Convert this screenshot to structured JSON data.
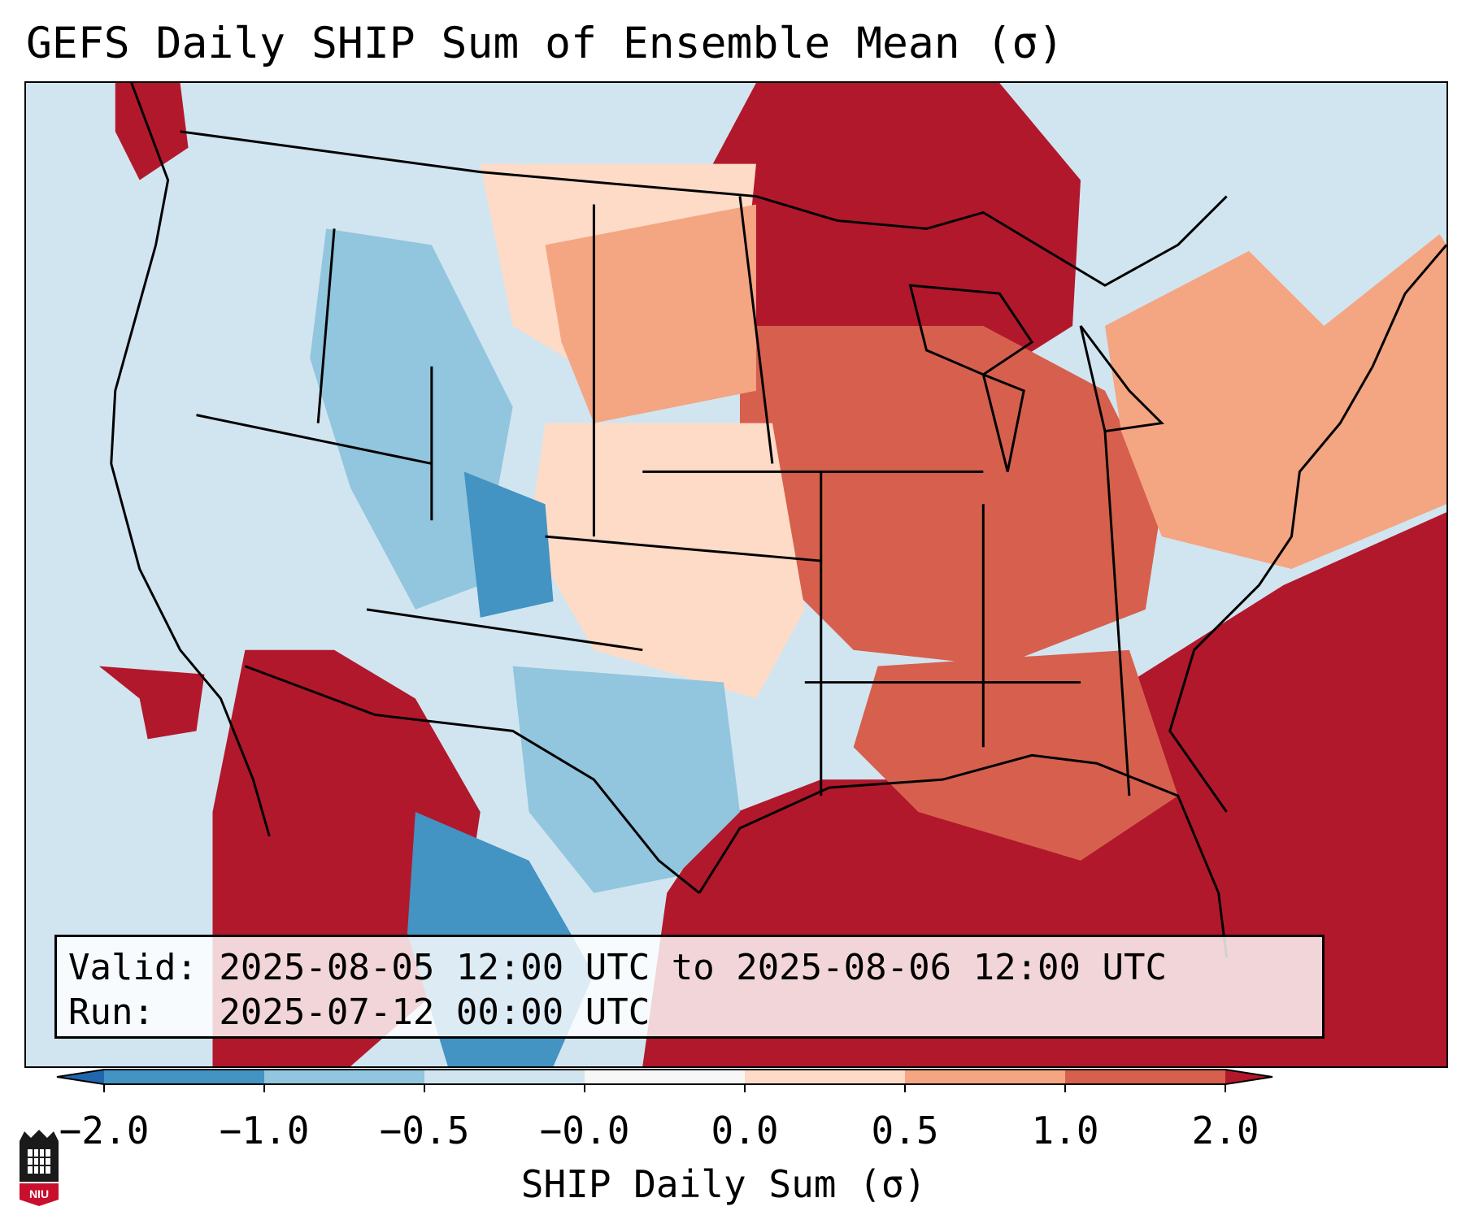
{
  "header": {
    "title": "GEFS Daily SHIP Sum of Ensemble Mean (σ)"
  },
  "info": {
    "valid_line": "Valid: 2025-08-05 12:00 UTC to 2025-08-06 12:00 UTC",
    "run_line": "Run:   2025-07-12 00:00 UTC"
  },
  "colorbar": {
    "label": "SHIP Daily Sum (σ)",
    "ticks": [
      "−2.0",
      "−1.0",
      "−0.5",
      "−0.0",
      "0.0",
      "0.5",
      "1.0",
      "2.0"
    ],
    "colors": [
      "#2166ac",
      "#4393c3",
      "#92c5de",
      "#d1e5f0",
      "#f7f7f7",
      "#fddbc7",
      "#f4a582",
      "#d6604d",
      "#b2182b"
    ],
    "extend": "both"
  },
  "map": {
    "region": "Contiguous United States",
    "colors": {
      "ocean": "#d1e5f0",
      "strong_positive": "#b2182b",
      "positive": "#d6604d",
      "weak_positive": "#f4a582",
      "slight_positive": "#fddbc7",
      "slight_negative": "#d1e5f0",
      "negative": "#92c5de",
      "strong_negative": "#4393c3"
    }
  },
  "logo": {
    "text": "NIU",
    "icon": "university-tower-icon"
  }
}
